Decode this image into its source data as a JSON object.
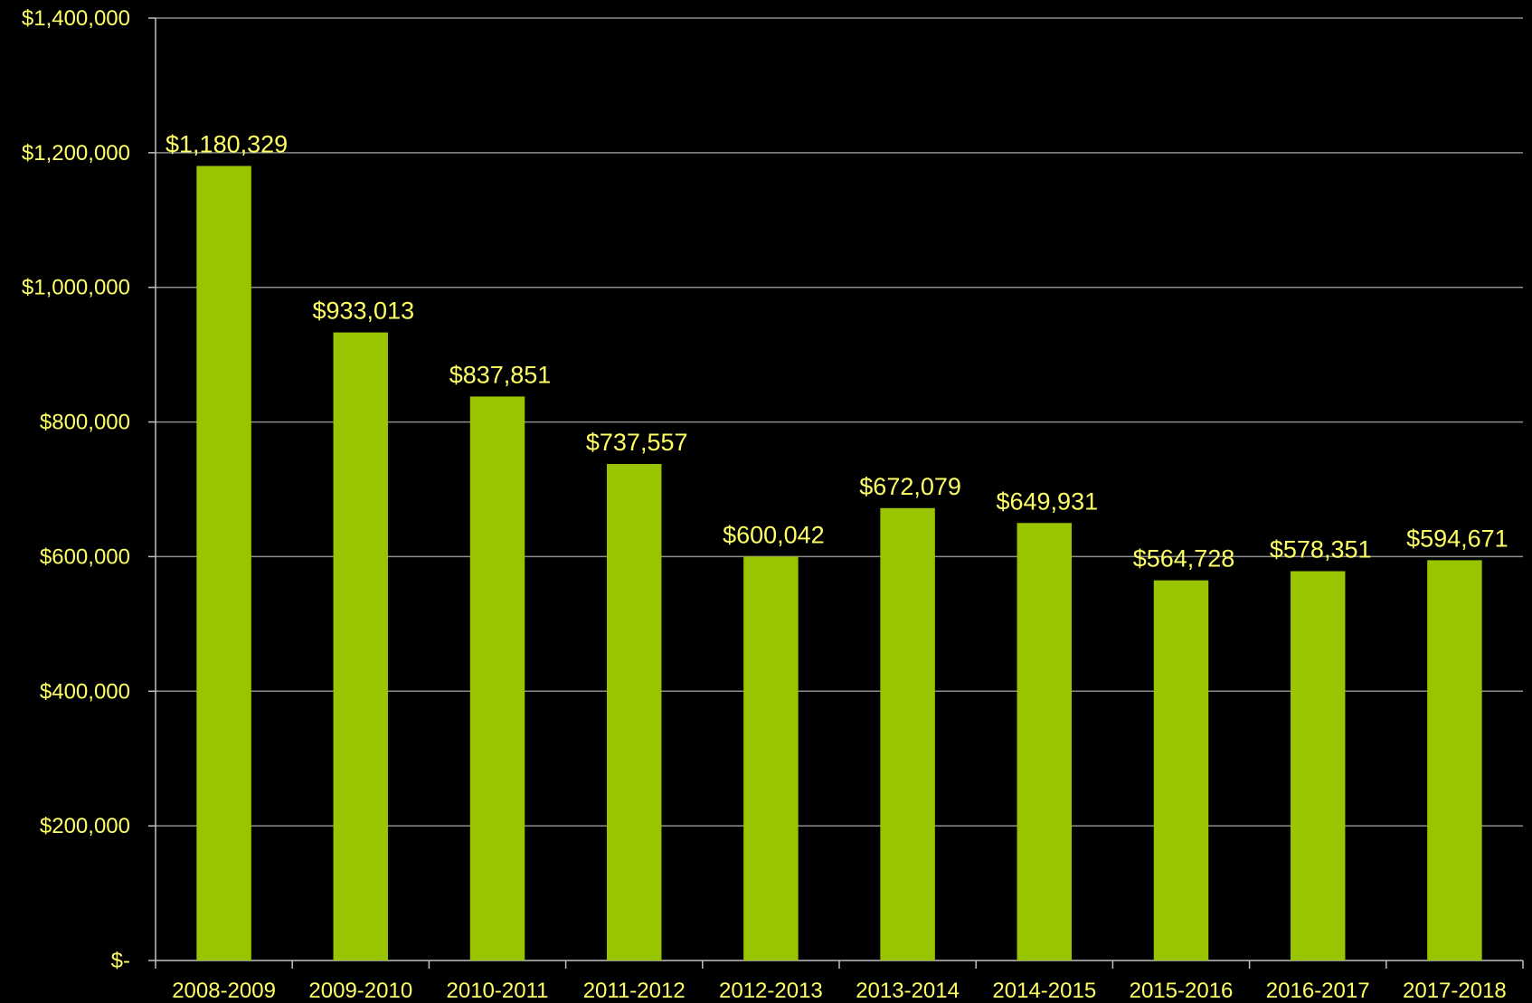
{
  "colors": {
    "background": "#000000",
    "bar": "#99c400",
    "text": "#ffff66",
    "grid": "#8c8c8c",
    "axis": "#bfbfbf"
  },
  "chart_data": {
    "type": "bar",
    "categories": [
      "2008-2009",
      "2009-2010",
      "2010-2011",
      "2011-2012",
      "2012-2013",
      "2013-2014",
      "2014-2015",
      "2015-2016",
      "2016-2017",
      "2017-2018"
    ],
    "series": [
      {
        "values": [
          1180329,
          933013,
          837851,
          737557,
          600042,
          672079,
          649931,
          564728,
          578351,
          594671
        ],
        "data_labels": [
          "$1,180,329",
          "$933,013",
          "$837,851",
          "$737,557",
          "$600,042",
          "$672,079",
          "$649,931",
          "$564,728",
          "$578,351",
          "$594,671"
        ]
      }
    ],
    "y_ticks": [
      0,
      200000,
      400000,
      600000,
      800000,
      1000000,
      1200000,
      1400000
    ],
    "y_tick_labels": [
      "$-",
      "$200,000",
      "$400,000",
      "$600,000",
      "$800,000",
      "$1,000,000",
      "$1,200,000",
      "$1,400,000"
    ],
    "ylim": [
      0,
      1400000
    ],
    "grid": true,
    "title": "",
    "xlabel": "",
    "ylabel": ""
  }
}
